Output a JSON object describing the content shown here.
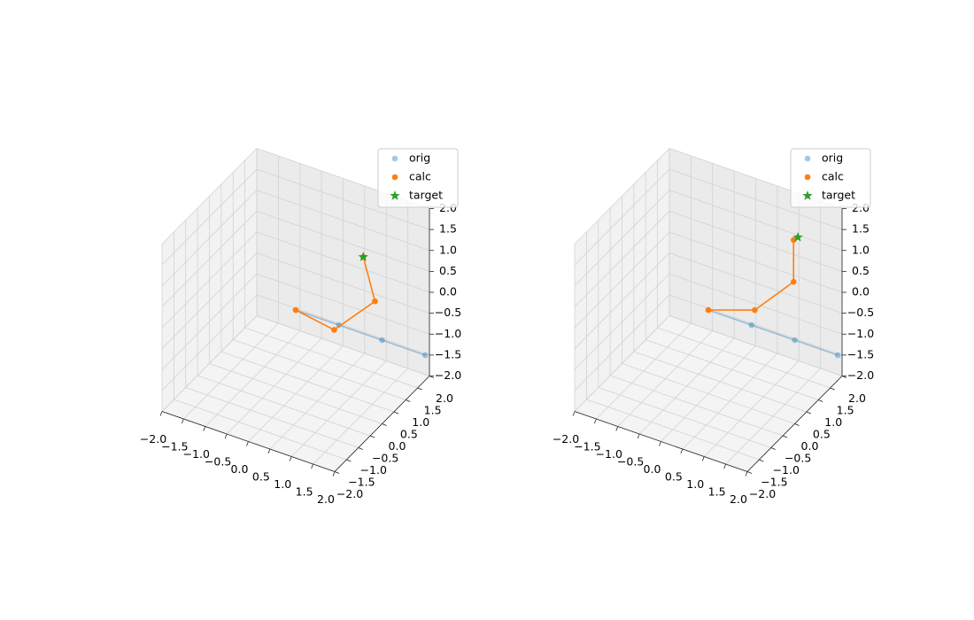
{
  "chart_data": [
    {
      "type": "scatter3d",
      "legend": "upper right",
      "xlim": [
        -2,
        2
      ],
      "ylim": [
        -2,
        2
      ],
      "zlim": [
        -2,
        2
      ],
      "xticks": [
        {
          "value": -2,
          "label": "−2.0"
        },
        {
          "value": -1.5,
          "label": "−1.5"
        },
        {
          "value": -1,
          "label": "−1.0"
        },
        {
          "value": -0.5,
          "label": "−0.5"
        },
        {
          "value": 0,
          "label": "0.0"
        },
        {
          "value": 0.5,
          "label": "0.5"
        },
        {
          "value": 1,
          "label": "1.0"
        },
        {
          "value": 1.5,
          "label": "1.5"
        },
        {
          "value": 2,
          "label": "2.0"
        }
      ],
      "yticks": [
        {
          "value": -2,
          "label": "−2.0"
        },
        {
          "value": -1.5,
          "label": "−1.5"
        },
        {
          "value": -1,
          "label": "−1.0"
        },
        {
          "value": -0.5,
          "label": "−0.5"
        },
        {
          "value": 0,
          "label": "0.0"
        },
        {
          "value": 0.5,
          "label": "0.5"
        },
        {
          "value": 1,
          "label": "1.0"
        },
        {
          "value": 1.5,
          "label": "1.5"
        },
        {
          "value": 2,
          "label": "2.0"
        }
      ],
      "zticks": [
        {
          "value": -2,
          "label": "−2.0"
        },
        {
          "value": -1.5,
          "label": "−1.5"
        },
        {
          "value": -1,
          "label": "−1.0"
        },
        {
          "value": -0.5,
          "label": "−0.5"
        },
        {
          "value": 0,
          "label": "0.0"
        },
        {
          "value": 0.5,
          "label": "0.5"
        },
        {
          "value": 1,
          "label": "1.0"
        },
        {
          "value": 1.5,
          "label": "1.5"
        },
        {
          "value": 2,
          "label": "2.0"
        }
      ],
      "series": [
        {
          "name": "orig",
          "color": "#1f77b4",
          "alpha": 0.4,
          "marker": "o",
          "line": true,
          "x": [
            0,
            1,
            2,
            3
          ],
          "y": [
            0,
            0,
            0,
            0
          ],
          "z": [
            0,
            0,
            0,
            0
          ]
        },
        {
          "name": "calc",
          "color": "#ff7f0e",
          "alpha": 1,
          "marker": "o",
          "line": true,
          "x": [
            0,
            1,
            2,
            1.4
          ],
          "y": [
            0,
            -0.2,
            -0.3,
            0.3
          ],
          "z": [
            0,
            0,
            1.1,
            1.6
          ]
        },
        {
          "name": "target",
          "color": "#2ca02c",
          "alpha": 1,
          "marker": "*",
          "line": false,
          "x": [
            1.4
          ],
          "y": [
            0.3
          ],
          "z": [
            1.6
          ]
        }
      ]
    },
    {
      "type": "scatter3d",
      "legend": "upper right",
      "xlim": [
        -2,
        2
      ],
      "ylim": [
        -2,
        2
      ],
      "zlim": [
        -2,
        2
      ],
      "xticks": [
        {
          "value": -2,
          "label": "−2.0"
        },
        {
          "value": -1.5,
          "label": "−1.5"
        },
        {
          "value": -1,
          "label": "−1.0"
        },
        {
          "value": -0.5,
          "label": "−0.5"
        },
        {
          "value": 0,
          "label": "0.0"
        },
        {
          "value": 0.5,
          "label": "0.5"
        },
        {
          "value": 1,
          "label": "1.0"
        },
        {
          "value": 1.5,
          "label": "1.5"
        },
        {
          "value": 2,
          "label": "2.0"
        }
      ],
      "yticks": [
        {
          "value": -2,
          "label": "−2.0"
        },
        {
          "value": -1.5,
          "label": "−1.5"
        },
        {
          "value": -1,
          "label": "−1.0"
        },
        {
          "value": -0.5,
          "label": "−0.5"
        },
        {
          "value": 0,
          "label": "0.0"
        },
        {
          "value": 0.5,
          "label": "0.5"
        },
        {
          "value": 1,
          "label": "1.0"
        },
        {
          "value": 1.5,
          "label": "1.5"
        },
        {
          "value": 2,
          "label": "2.0"
        }
      ],
      "zticks": [
        {
          "value": -2,
          "label": "−2.0"
        },
        {
          "value": -1.5,
          "label": "−1.5"
        },
        {
          "value": -1,
          "label": "−1.0"
        },
        {
          "value": -0.5,
          "label": "−0.5"
        },
        {
          "value": 0,
          "label": "0.0"
        },
        {
          "value": 0.5,
          "label": "0.5"
        },
        {
          "value": 1,
          "label": "1.0"
        },
        {
          "value": 1.5,
          "label": "1.5"
        },
        {
          "value": 2,
          "label": "2.0"
        }
      ],
      "series": [
        {
          "name": "orig",
          "color": "#1f77b4",
          "alpha": 0.4,
          "marker": "o",
          "line": true,
          "x": [
            0,
            1,
            2,
            3
          ],
          "y": [
            0,
            0,
            0,
            0
          ],
          "z": [
            0,
            0,
            0,
            0
          ]
        },
        {
          "name": "calc",
          "color": "#ff7f0e",
          "alpha": 1,
          "marker": "o",
          "line": true,
          "x": [
            0,
            0.8,
            1.7,
            1.7
          ],
          "y": [
            0,
            0.5,
            0.5,
            0.5
          ],
          "z": [
            0,
            0,
            1,
            2
          ]
        },
        {
          "name": "target",
          "color": "#2ca02c",
          "alpha": 1,
          "marker": "*",
          "line": false,
          "x": [
            1.8
          ],
          "y": [
            0.5
          ],
          "z": [
            2.1
          ]
        }
      ]
    }
  ]
}
